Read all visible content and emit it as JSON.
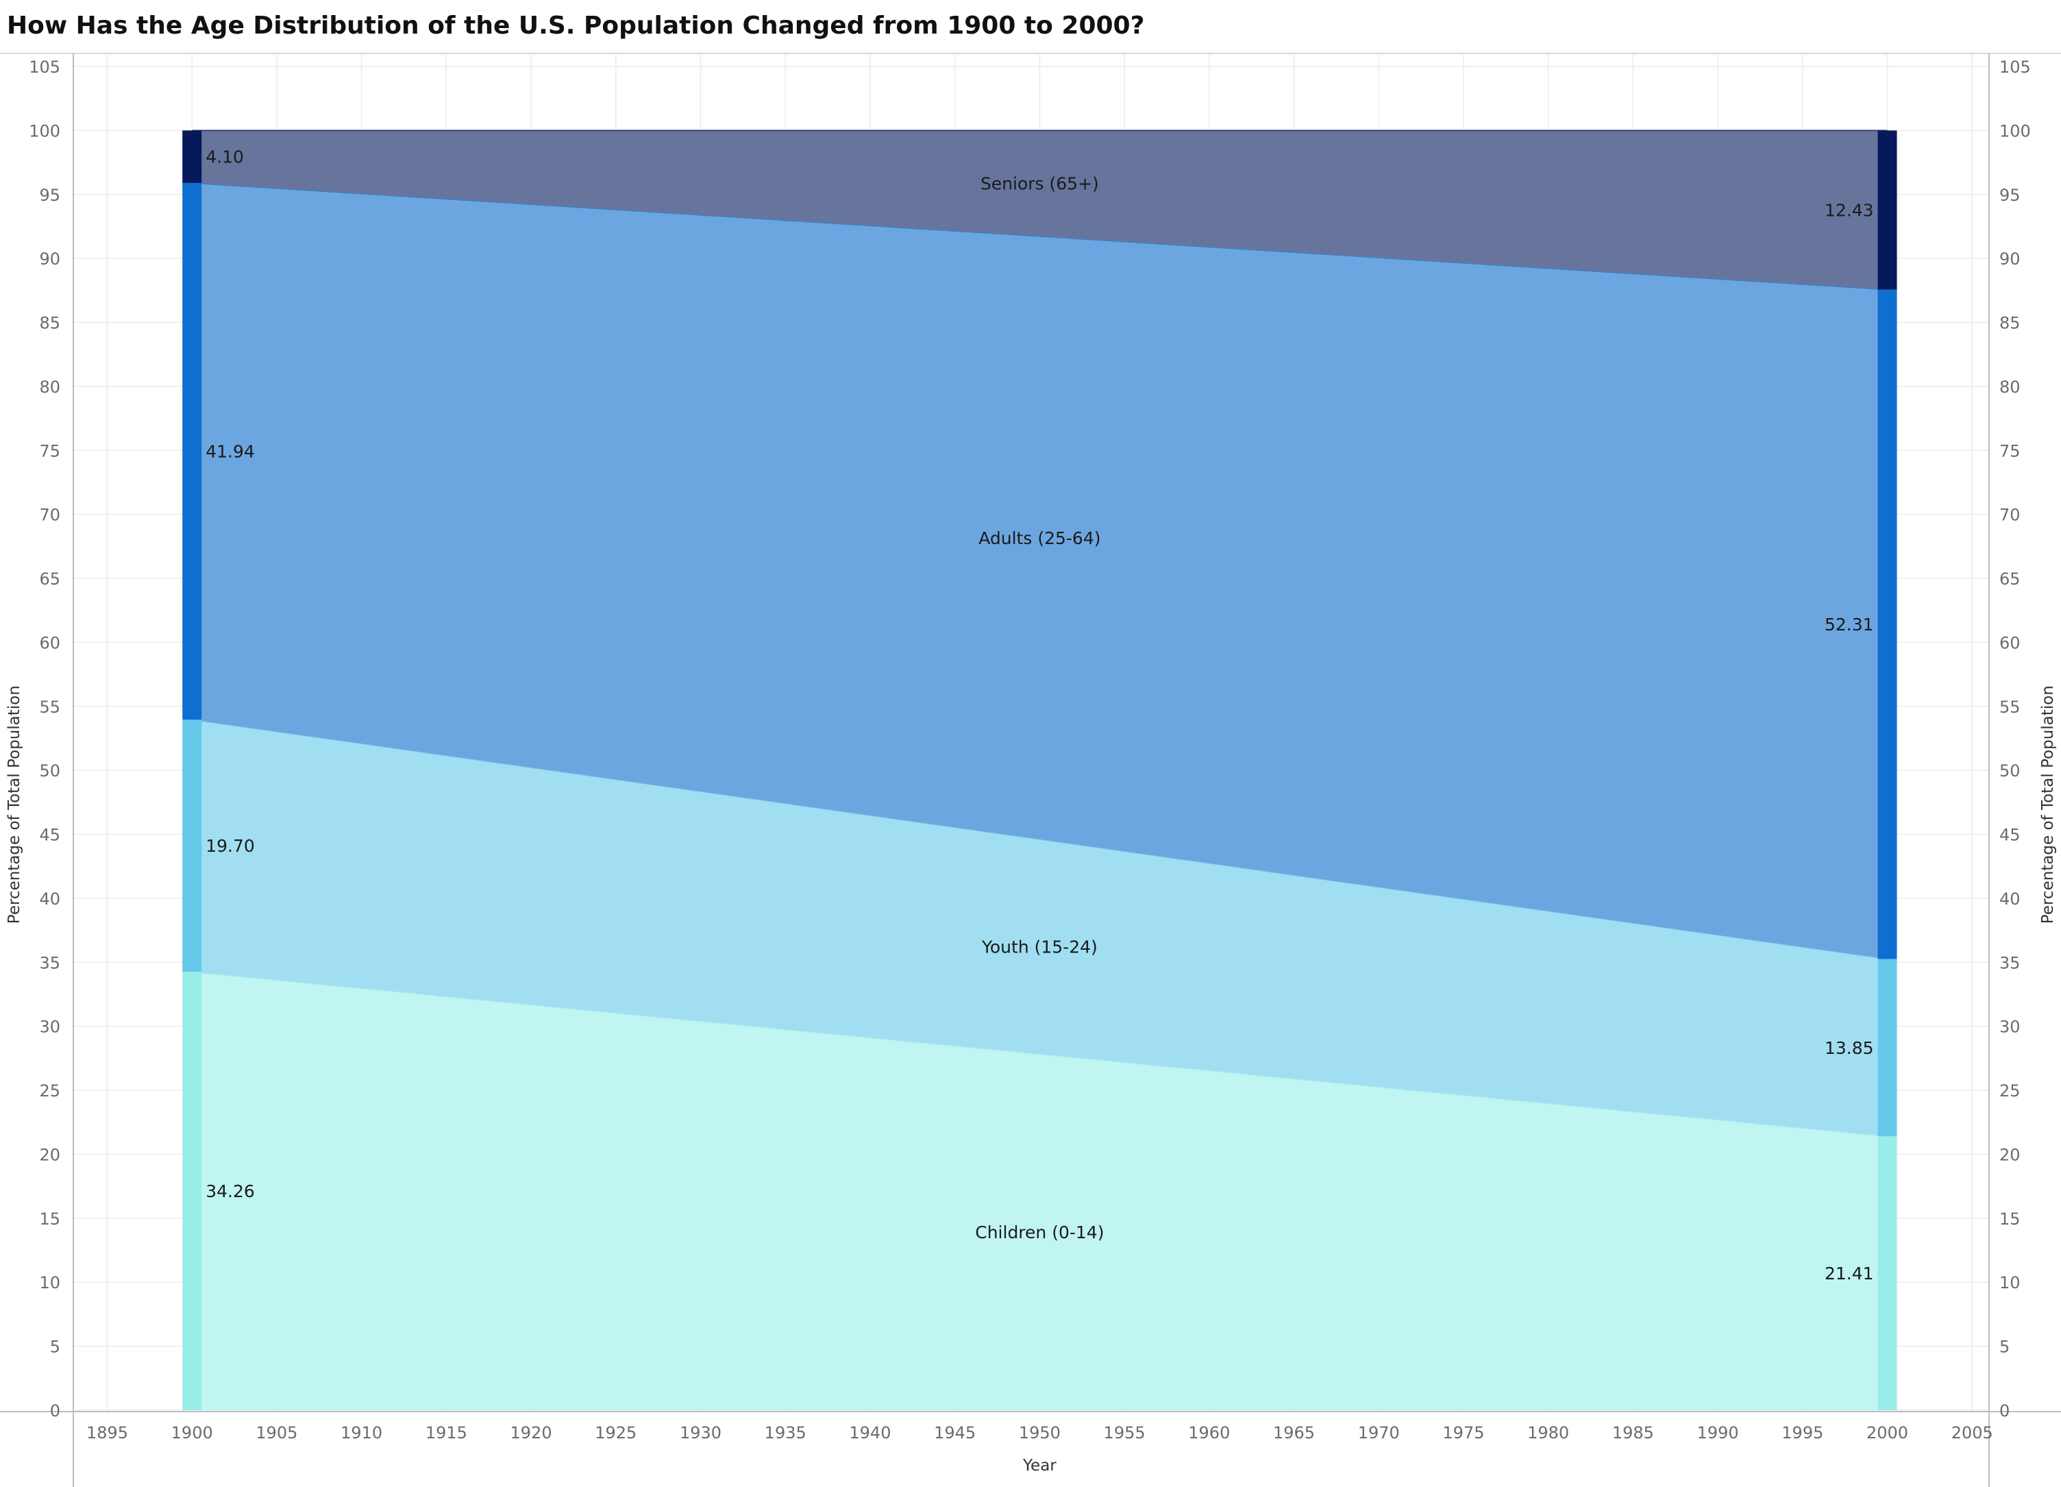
{
  "chart_data": {
    "type": "area",
    "title": "How Has the Age Distribution of the U.S. Population Changed from 1900 to 2000?",
    "xlabel": "Year",
    "ylabel": "Percentage of Total Population",
    "ylabel_right": "Percentage of Total Population",
    "x": [
      1900,
      2000
    ],
    "xlim": [
      1893,
      2006
    ],
    "ylim": [
      0,
      105
    ],
    "x_ticks": [
      "1895",
      "1900",
      "1905",
      "1910",
      "1915",
      "1920",
      "1925",
      "1930",
      "1935",
      "1940",
      "1945",
      "1950",
      "1955",
      "1960",
      "1965",
      "1970",
      "1975",
      "1980",
      "1985",
      "1990",
      "1995",
      "2000",
      "2005"
    ],
    "y_ticks": [
      "0",
      "5",
      "10",
      "15",
      "20",
      "25",
      "30",
      "35",
      "40",
      "45",
      "50",
      "55",
      "60",
      "65",
      "70",
      "75",
      "80",
      "85",
      "90",
      "95",
      "100",
      "105"
    ],
    "stacked": true,
    "grid": true,
    "series": [
      {
        "name": "Children (0-14)",
        "values": [
          34.26,
          21.41
        ],
        "value_labels": [
          "34.26",
          "21.41"
        ],
        "color": "#c0f5f2",
        "bar_color": "#99ede9"
      },
      {
        "name": "Youth (15-24)",
        "values": [
          19.7,
          13.85
        ],
        "value_labels": [
          "19.70",
          "13.85"
        ],
        "color": "#a1def2",
        "bar_color": "#66c9ea"
      },
      {
        "name": "Adults (25-64)",
        "values": [
          41.94,
          52.31
        ],
        "value_labels": [
          "41.94",
          "52.31"
        ],
        "color": "#6ca6e0",
        "bar_color": "#0f6fd0"
      },
      {
        "name": "Seniors (65+)",
        "values": [
          4.1,
          12.43
        ],
        "value_labels": [
          "4.10",
          "12.43"
        ],
        "color": "#67759c",
        "bar_color": "#061a5b"
      }
    ]
  }
}
